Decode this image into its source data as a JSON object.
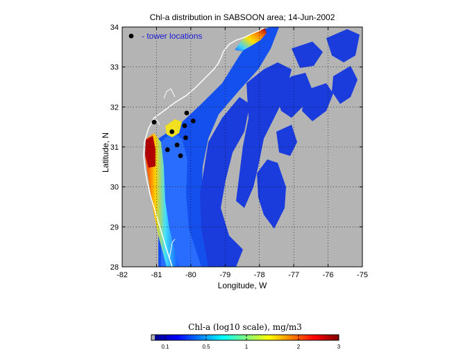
{
  "title": "Chl-a distribution in SABSOON area; 14-Jun-2002",
  "xlabel": "Longitude, W",
  "ylabel": "Latitude, N",
  "legend": {
    "marker": "black-dot",
    "label": "- tower locations",
    "color": "#1a1ad8"
  },
  "x_ticks": [
    "-82",
    "-81",
    "-80",
    "-79",
    "-78",
    "-77",
    "-76",
    "-75"
  ],
  "y_ticks": [
    "34",
    "33",
    "32",
    "31",
    "30",
    "29",
    "28"
  ],
  "grid": "dotted",
  "colorbar": {
    "title": "Chl-a (log10 scale), mg/m3",
    "tick_labels": [
      "0.1",
      "0.5",
      "1",
      "2",
      "3"
    ],
    "colormap": "jet"
  },
  "colors": {
    "land_mask": "#b4b4b4",
    "coastline": "#ffffff",
    "tower": "#000000",
    "ocean_low": "#1432d2"
  },
  "towers": [
    {
      "lon": -81.07,
      "lat": 31.62
    },
    {
      "lon": -80.12,
      "lat": 31.85
    },
    {
      "lon": -80.55,
      "lat": 31.38
    },
    {
      "lon": -80.18,
      "lat": 31.53
    },
    {
      "lon": -79.93,
      "lat": 31.65
    },
    {
      "lon": -80.15,
      "lat": 31.23
    },
    {
      "lon": -80.4,
      "lat": 31.05
    },
    {
      "lon": -80.68,
      "lat": 30.93
    },
    {
      "lon": -80.3,
      "lat": 30.78
    }
  ]
}
